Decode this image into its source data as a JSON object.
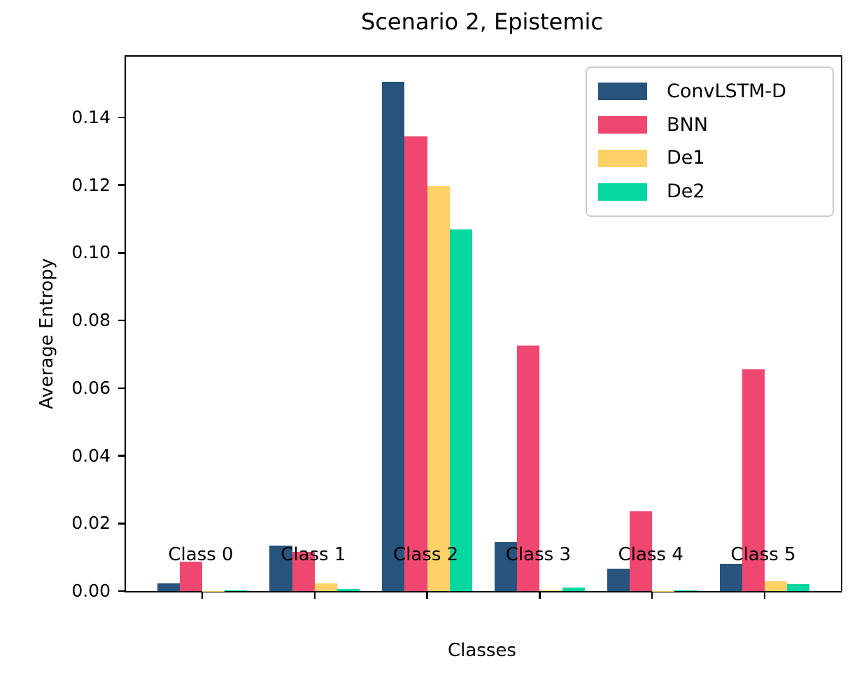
{
  "chart_data": {
    "type": "bar",
    "title": "Scenario 2, Epistemic",
    "xlabel": "Classes",
    "ylabel": "Average Entropy",
    "categories": [
      "Class 0",
      "Class 1",
      "Class 2",
      "Class 3",
      "Class 4",
      "Class 5"
    ],
    "series": [
      {
        "name": "ConvLSTM-D",
        "color": "#26547C",
        "values": [
          0.0023,
          0.0134,
          0.1505,
          0.0145,
          0.0067,
          0.0081
        ]
      },
      {
        "name": "BNN",
        "color": "#EF476F",
        "values": [
          0.0086,
          0.0116,
          0.1345,
          0.0725,
          0.0236,
          0.0656
        ]
      },
      {
        "name": "De1",
        "color": "#FFD166",
        "values": [
          0.0001,
          0.0023,
          0.1197,
          0.0002,
          0.0001,
          0.003
        ]
      },
      {
        "name": "De2",
        "color": "#06D6A0",
        "values": [
          0.0003,
          0.0006,
          0.107,
          0.0011,
          0.0002,
          0.0021
        ]
      }
    ],
    "yticks": [
      "0.00",
      "0.02",
      "0.04",
      "0.06",
      "0.08",
      "0.10",
      "0.12",
      "0.14"
    ],
    "ylim": [
      0,
      0.158
    ],
    "grid": false,
    "legend_position": "upper right",
    "axis_color": "#000000",
    "legend_border_color": "#cccccc",
    "background_color": "#ffffff"
  }
}
